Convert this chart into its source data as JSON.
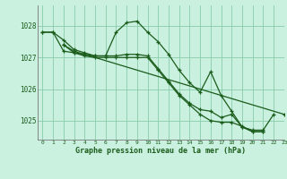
{
  "title": "Graphe pression niveau de la mer (hPa)",
  "bg_color": "#caf0e0",
  "grid_color": "#88ccaa",
  "line_color": "#1a5c1a",
  "ylim": [
    1024.4,
    1028.65
  ],
  "xlim": [
    -0.5,
    23
  ],
  "yticks": [
    1025,
    1026,
    1027,
    1028
  ],
  "xticks": [
    0,
    1,
    2,
    3,
    4,
    5,
    6,
    7,
    8,
    9,
    10,
    11,
    12,
    13,
    14,
    15,
    16,
    17,
    18,
    19,
    20,
    21,
    22,
    23
  ],
  "series": [
    {
      "x": [
        0,
        1,
        2,
        3,
        4,
        5,
        6,
        7,
        8,
        9,
        10,
        11,
        12,
        13,
        14,
        15,
        16,
        17,
        18,
        19,
        20,
        21,
        22
      ],
      "y": [
        1027.8,
        1027.8,
        1027.55,
        1027.25,
        1027.15,
        1027.05,
        1027.05,
        1027.8,
        1028.1,
        1028.15,
        1027.8,
        1027.5,
        1027.1,
        1026.6,
        1026.2,
        1025.9,
        1026.55,
        1025.8,
        1025.3,
        1024.8,
        1024.7,
        1024.7,
        1025.2
      ]
    },
    {
      "x": [
        0,
        1,
        2,
        3,
        4,
        5,
        6,
        7,
        8,
        9,
        10,
        11,
        12,
        13,
        14,
        15,
        16,
        17,
        18,
        19,
        20,
        21
      ],
      "y": [
        1027.8,
        1027.8,
        1027.2,
        1027.15,
        1027.1,
        1027.05,
        1027.05,
        1027.05,
        1027.1,
        1027.1,
        1027.05,
        1026.65,
        1026.25,
        1025.85,
        1025.55,
        1025.35,
        1025.3,
        1025.1,
        1025.2,
        1024.8,
        1024.65,
        1024.65
      ]
    },
    {
      "x": [
        2,
        3,
        4,
        5,
        6,
        7,
        8,
        9,
        10,
        11,
        12,
        13,
        14,
        15,
        16,
        17,
        18,
        19,
        20,
        21
      ],
      "y": [
        1027.4,
        1027.15,
        1027.05,
        1027.0,
        1027.0,
        1027.0,
        1027.0,
        1027.0,
        1027.0,
        1026.6,
        1026.2,
        1025.8,
        1025.5,
        1025.2,
        1025.0,
        1024.95,
        1024.95,
        1024.82,
        1024.65,
        1024.65
      ]
    },
    {
      "x": [
        2,
        3,
        23
      ],
      "y": [
        1027.4,
        1027.2,
        1025.2
      ]
    }
  ]
}
